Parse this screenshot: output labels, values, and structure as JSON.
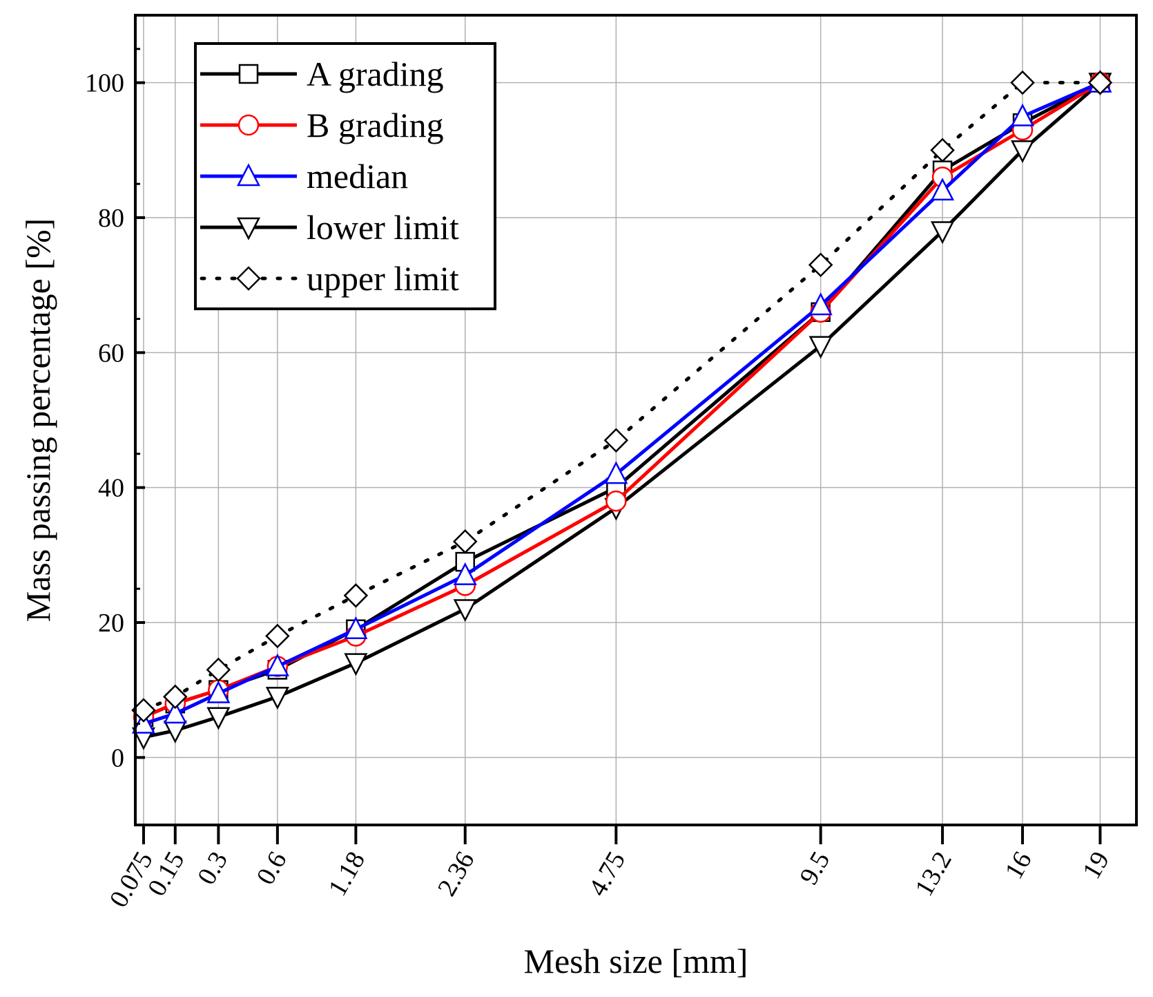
{
  "chart_data": {
    "type": "line",
    "title": "",
    "xlabel": "Mesh size [mm]",
    "ylabel": "Mass passing percentage [%]",
    "ylim": [
      -10,
      110
    ],
    "yticks": [
      0,
      20,
      40,
      60,
      80,
      100
    ],
    "ytick_labels": [
      "0",
      "20",
      "40",
      "60",
      "80",
      "100"
    ],
    "x_scale": "power 0.45",
    "xlim": [
      0.06,
      20.5
    ],
    "x": [
      0.075,
      0.15,
      0.3,
      0.6,
      1.18,
      2.36,
      4.75,
      9.5,
      13.2,
      16,
      19
    ],
    "x_labels": [
      "0.075",
      "0.15",
      "0.3",
      "0.6",
      "1.18",
      "2.36",
      "4.75",
      "9.5",
      "13.2",
      "16",
      "19"
    ],
    "grid": true,
    "legend_position": "top-left",
    "series": [
      {
        "name": "A grading",
        "color": "#000000",
        "marker": "square",
        "dash": "solid",
        "values": [
          6,
          8,
          10,
          13,
          19,
          29,
          40,
          66,
          87,
          94,
          100
        ]
      },
      {
        "name": "B grading",
        "color": "#ff0000",
        "marker": "circle",
        "dash": "solid",
        "values": [
          6,
          8,
          10,
          13.5,
          18,
          25.5,
          38,
          66,
          86,
          93,
          100
        ]
      },
      {
        "name": "median",
        "color": "#0000ff",
        "marker": "triangle-up",
        "dash": "solid",
        "values": [
          5,
          6.5,
          9.5,
          13.5,
          19,
          27,
          42,
          67,
          84,
          95,
          100
        ]
      },
      {
        "name": "lower limit",
        "color": "#000000",
        "marker": "triangle-down",
        "dash": "solid",
        "values": [
          3,
          4,
          6,
          9,
          14,
          22,
          37,
          61,
          78,
          90,
          100
        ]
      },
      {
        "name": "upper limit",
        "color": "#000000",
        "marker": "diamond",
        "dash": "dotted",
        "values": [
          7,
          9,
          13,
          18,
          24,
          32,
          47,
          73,
          90,
          100,
          100
        ]
      }
    ]
  }
}
